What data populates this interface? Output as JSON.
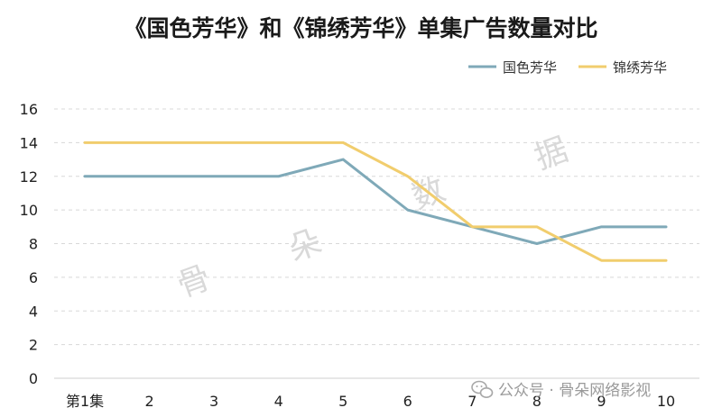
{
  "chart_data": {
    "type": "line",
    "title": "《国色芳华》和《锦绣芳华》单集广告数量对比",
    "categories": [
      "第1集",
      "2",
      "3",
      "4",
      "5",
      "6",
      "7",
      "8",
      "9",
      "10"
    ],
    "series": [
      {
        "name": "国色芳华",
        "color": "#7fa9b8",
        "values": [
          12,
          12,
          12,
          12,
          13,
          10,
          9,
          8,
          9,
          9
        ]
      },
      {
        "name": "锦绣芳华",
        "color": "#f1cd6d",
        "values": [
          14,
          14,
          14,
          14,
          14,
          12,
          9,
          9,
          7,
          7
        ]
      }
    ],
    "ylim": [
      0,
      16
    ],
    "yticks": [
      0,
      2,
      4,
      6,
      8,
      10,
      12,
      14,
      16
    ],
    "grid": true,
    "legend_position": "top-right"
  },
  "watermark": [
    "骨",
    "朵",
    "数",
    "据"
  ],
  "footer": {
    "icon": "wechat-icon",
    "text": "公众号 · 骨朵网络影视"
  }
}
